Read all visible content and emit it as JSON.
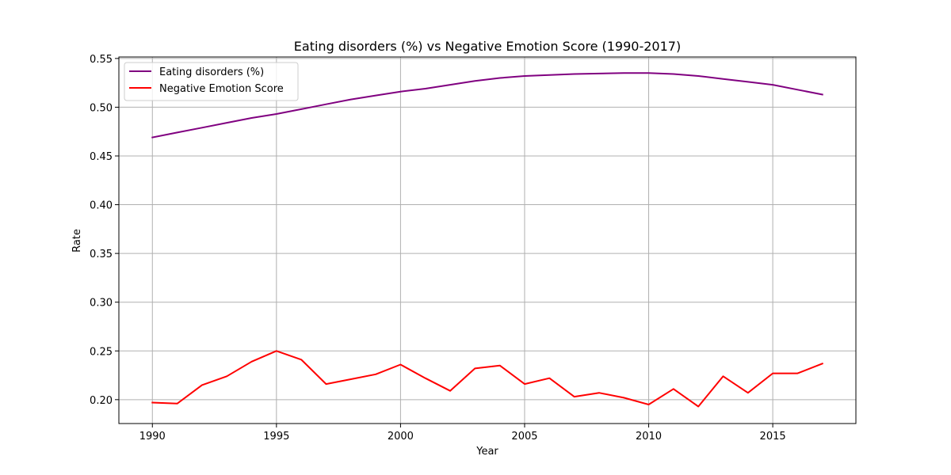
{
  "chart_data": {
    "type": "line",
    "title": "Eating disorders (%) vs Negative Emotion Score (1990-2017)",
    "xlabel": "Year",
    "ylabel": "Rate",
    "xlim": [
      1988.65,
      2018.35
    ],
    "ylim": [
      0.1755,
      0.5515
    ],
    "xticks": [
      1990,
      1995,
      2000,
      2005,
      2010,
      2015
    ],
    "yticks": [
      0.2,
      0.25,
      0.3,
      0.35,
      0.4,
      0.45,
      0.5,
      0.55
    ],
    "ytick_labels": [
      "0.20",
      "0.25",
      "0.30",
      "0.35",
      "0.40",
      "0.45",
      "0.50",
      "0.55"
    ],
    "grid": true,
    "legend_position": "top-left",
    "x": [
      1990,
      1991,
      1992,
      1993,
      1994,
      1995,
      1996,
      1997,
      1998,
      1999,
      2000,
      2001,
      2002,
      2003,
      2004,
      2005,
      2006,
      2007,
      2008,
      2009,
      2010,
      2011,
      2012,
      2013,
      2014,
      2015,
      2016,
      2017
    ],
    "series": [
      {
        "name": "Eating disorders (%)",
        "color": "#800080",
        "values": [
          0.469,
          0.474,
          0.479,
          0.484,
          0.489,
          0.493,
          0.498,
          0.503,
          0.508,
          0.512,
          0.516,
          0.519,
          0.523,
          0.527,
          0.53,
          0.532,
          0.533,
          0.534,
          0.5345,
          0.535,
          0.535,
          0.534,
          0.532,
          0.529,
          0.526,
          0.523,
          0.518,
          0.513
        ]
      },
      {
        "name": "Negative Emotion Score",
        "color": "#ff0000",
        "values": [
          0.197,
          0.196,
          0.215,
          0.224,
          0.239,
          0.25,
          0.241,
          0.216,
          0.221,
          0.226,
          0.236,
          0.222,
          0.209,
          0.232,
          0.235,
          0.216,
          0.222,
          0.203,
          0.207,
          0.202,
          0.195,
          0.211,
          0.193,
          0.224,
          0.207,
          0.227,
          0.227,
          0.237
        ]
      }
    ]
  }
}
